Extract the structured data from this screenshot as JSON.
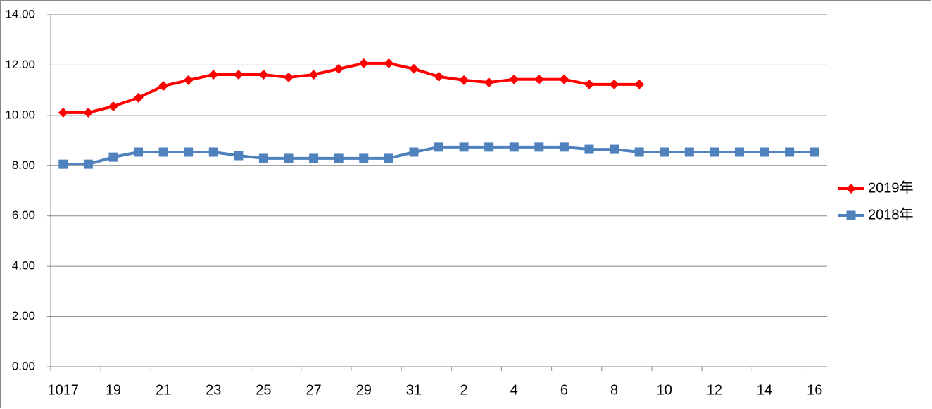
{
  "chart_data": {
    "type": "line",
    "categories": [
      "1017",
      null,
      "19",
      null,
      "21",
      null,
      "23",
      null,
      "25",
      null,
      "27",
      null,
      "29",
      null,
      "31",
      null,
      "2",
      null,
      "4",
      null,
      "6",
      null,
      "8",
      null,
      "10",
      null,
      "12",
      null,
      "14",
      null,
      "16"
    ],
    "series": [
      {
        "name": "2019年",
        "color": "#ff0000",
        "marker": "diamond",
        "values": [
          10.11,
          10.11,
          10.36,
          10.7,
          11.17,
          11.4,
          11.62,
          11.62,
          11.62,
          11.51,
          11.62,
          11.85,
          12.07,
          12.07,
          11.85,
          11.54,
          11.4,
          11.31,
          11.43,
          11.43,
          11.43,
          11.23,
          11.23,
          11.23,
          null,
          null,
          null,
          null,
          null,
          null,
          null
        ]
      },
      {
        "name": "2018年",
        "color": "#4f81bd",
        "marker": "square",
        "values": [
          8.06,
          8.06,
          8.34,
          8.54,
          8.54,
          8.54,
          8.54,
          8.4,
          8.29,
          8.29,
          8.29,
          8.29,
          8.29,
          8.29,
          8.54,
          8.74,
          8.74,
          8.74,
          8.74,
          8.74,
          8.74,
          8.65,
          8.65,
          8.54,
          8.54,
          8.54,
          8.54,
          8.54,
          8.54,
          8.54,
          8.54
        ]
      }
    ],
    "ylim": [
      0,
      14
    ],
    "yticks": [
      {
        "value": 0,
        "label": "0.00"
      },
      {
        "value": 2,
        "label": "2.00"
      },
      {
        "value": 4,
        "label": "4.00"
      },
      {
        "value": 6,
        "label": "6.00"
      },
      {
        "value": 8,
        "label": "8.00"
      },
      {
        "value": 10,
        "label": "10.00"
      },
      {
        "value": 12,
        "label": "12.00"
      },
      {
        "value": 14,
        "label": "14.00"
      }
    ],
    "grid": true,
    "legend": "right"
  }
}
